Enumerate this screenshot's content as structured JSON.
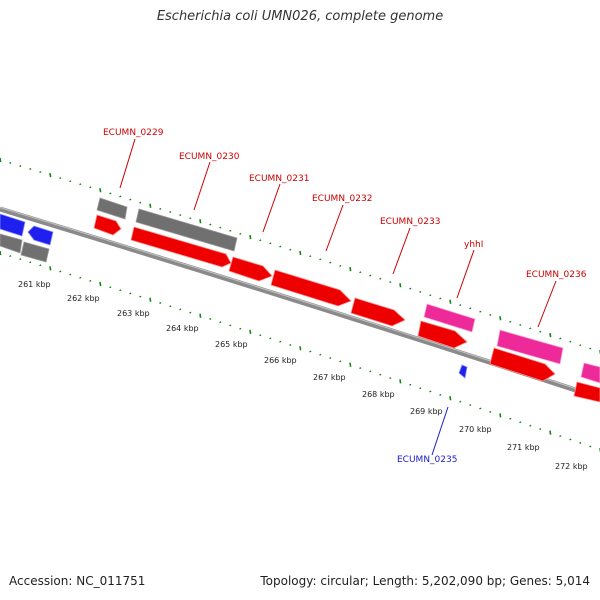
{
  "header": {
    "title": "Escherichia coli UMN026, complete genome"
  },
  "footer": {
    "accession": "Accession: NC_011751",
    "summary": "Topology: circular; Length: 5,202,090 bp; Genes: 5,014"
  },
  "colors": {
    "forward_cds": "#ee0000",
    "reverse_cds": "#1f1fee",
    "gray_feature": "#707070",
    "pink_feature": "#ee2a9a",
    "tick_green": "#118811",
    "backbone": "#808080",
    "label_red": "#cc0000",
    "label_blue": "#1a1acc"
  },
  "gene_labels": [
    {
      "name": "ECUMN_0229",
      "strand": "forward"
    },
    {
      "name": "ECUMN_0230",
      "strand": "forward"
    },
    {
      "name": "ECUMN_0231",
      "strand": "forward"
    },
    {
      "name": "ECUMN_0232",
      "strand": "forward"
    },
    {
      "name": "ECUMN_0233",
      "strand": "forward"
    },
    {
      "name": "yhhI",
      "strand": "forward"
    },
    {
      "name": "ECUMN_0236",
      "strand": "forward"
    },
    {
      "name": "ECUMN_0235",
      "strand": "reverse"
    }
  ],
  "kbp_ticks": [
    "261 kbp",
    "262 kbp",
    "263 kbp",
    "264 kbp",
    "265 kbp",
    "266 kbp",
    "267 kbp",
    "268 kbp",
    "269 kbp",
    "270 kbp",
    "271 kbp",
    "272 kbp"
  ]
}
